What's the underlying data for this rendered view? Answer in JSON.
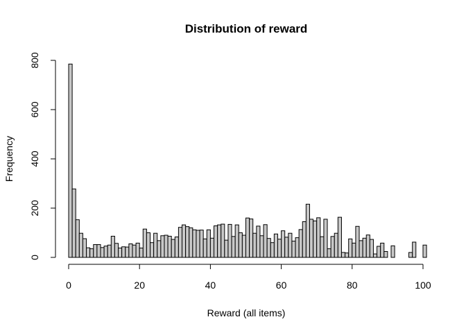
{
  "chart_data": {
    "type": "bar",
    "subtype": "histogram",
    "title": "Distribution of reward",
    "xlabel": "Reward (all items)",
    "ylabel": "Frequency",
    "xlim": [
      0,
      100
    ],
    "ylim": [
      0,
      800
    ],
    "xticks": [
      0,
      20,
      40,
      60,
      80,
      100
    ],
    "yticks": [
      0,
      200,
      400,
      600,
      800
    ],
    "grid": false,
    "bin_width": 1,
    "bar_color": "#c8c8c8",
    "edge_color": "#000000",
    "bins_start": 0,
    "values": [
      785,
      278,
      153,
      98,
      76,
      39,
      35,
      52,
      52,
      40,
      46,
      50,
      86,
      57,
      38,
      43,
      42,
      55,
      50,
      58,
      38,
      115,
      100,
      60,
      98,
      68,
      88,
      90,
      86,
      73,
      83,
      122,
      132,
      125,
      120,
      112,
      110,
      111,
      75,
      112,
      78,
      128,
      132,
      135,
      70,
      134,
      85,
      132,
      100,
      90,
      160,
      156,
      98,
      127,
      88,
      133,
      77,
      60,
      95,
      74,
      108,
      82,
      98,
      66,
      80,
      113,
      145,
      216,
      155,
      148,
      161,
      84,
      155,
      35,
      85,
      98,
      163,
      20,
      18,
      75,
      58,
      126,
      68,
      78,
      91,
      73,
      14,
      45,
      58,
      24,
      0,
      47,
      0,
      0,
      0,
      0,
      20,
      62,
      0,
      0,
      50
    ]
  }
}
